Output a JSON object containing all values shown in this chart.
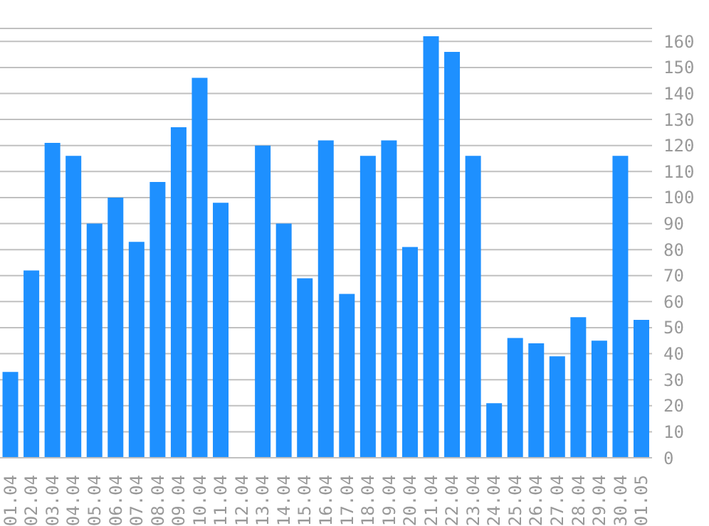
{
  "chart_data": {
    "type": "bar",
    "categories": [
      "01.04",
      "02.04",
      "03.04",
      "04.04",
      "05.04",
      "06.04",
      "07.04",
      "08.04",
      "09.04",
      "10.04",
      "11.04",
      "12.04",
      "13.04",
      "14.04",
      "15.04",
      "16.04",
      "17.04",
      "18.04",
      "19.04",
      "20.04",
      "21.04",
      "22.04",
      "23.04",
      "24.04",
      "25.04",
      "26.04",
      "27.04",
      "28.04",
      "29.04",
      "30.04",
      "01.05"
    ],
    "values": [
      33,
      72,
      121,
      116,
      90,
      100,
      83,
      106,
      127,
      146,
      98,
      0,
      120,
      90,
      69,
      122,
      63,
      116,
      122,
      81,
      162,
      156,
      116,
      21,
      46,
      44,
      39,
      54,
      45,
      116,
      53
    ],
    "color": "#1e90ff",
    "ylim": [
      0,
      165
    ],
    "yticks": [
      0,
      10,
      20,
      30,
      40,
      50,
      60,
      70,
      80,
      90,
      100,
      110,
      120,
      130,
      140,
      150,
      160
    ],
    "grid": "y"
  }
}
